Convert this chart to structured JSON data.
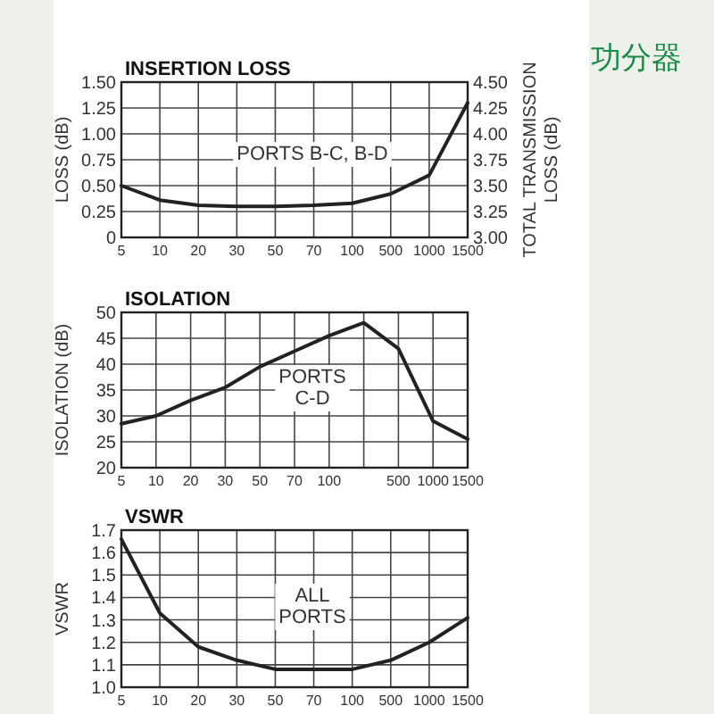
{
  "chart_data": [
    {
      "type": "line",
      "title": "INSERTION LOSS",
      "ylabel": "LOSS (dB)",
      "y2label": "TOTAL TRANSMISSION LOSS (dB)",
      "categories": [
        "5",
        "10",
        "20",
        "30",
        "50",
        "70",
        "100",
        "500",
        "1000",
        "1500"
      ],
      "series": [
        {
          "color": "#222222",
          "values": [
            0.5,
            0.36,
            0.31,
            0.3,
            0.3,
            0.31,
            0.33,
            0.42,
            0.6,
            1.3
          ]
        }
      ],
      "ylim": [
        0,
        1.5
      ],
      "yticks": [
        0,
        {
          "value": 0.25,
          "label": "0.25"
        },
        {
          "value": 0.5,
          "label": "0.50"
        },
        {
          "value": 0.75,
          "label": "0.75"
        },
        {
          "value": 1,
          "label": "1.00"
        },
        {
          "value": 1.25,
          "label": "1.25"
        },
        {
          "value": 1.5,
          "label": "1.50"
        }
      ],
      "y2lim": [
        3,
        4.5
      ],
      "y2ticks": [
        {
          "value": 3,
          "label": "3.00"
        },
        {
          "value": 3.25,
          "label": "3.25"
        },
        {
          "value": 3.5,
          "label": "3.50"
        },
        {
          "value": 3.75,
          "label": "3.75"
        },
        {
          "value": 4,
          "label": "4.00"
        },
        {
          "value": 4.25,
          "label": "4.25"
        },
        {
          "value": 4.5,
          "label": "4.50"
        }
      ],
      "annotations": [
        "PORTS B-C, B-D",
        "功分器"
      ],
      "grid": true
    },
    {
      "type": "line",
      "title": "ISOLATION",
      "ylabel": "ISOLATION (dB)",
      "categories": [
        "5",
        "10",
        "20",
        "30",
        "50",
        "70",
        "100",
        null,
        "500",
        "1000",
        "1500"
      ],
      "series": [
        {
          "color": "#222222",
          "values": [
            28.5,
            30,
            33,
            35.5,
            39.5,
            42.5,
            45.5,
            48,
            43,
            29,
            25.5
          ]
        }
      ],
      "ylim": [
        20,
        50
      ],
      "yticks": [
        20,
        25,
        30,
        35,
        40,
        45,
        50
      ],
      "annotations": [
        "PORTS\nC-D"
      ],
      "grid": true
    },
    {
      "type": "line",
      "title": "VSWR",
      "ylabel": "VSWR",
      "categories": [
        "5",
        "10",
        "20",
        "30",
        "50",
        "70",
        "100",
        "500",
        "1000",
        "1500"
      ],
      "series": [
        {
          "color": "#222222",
          "values": [
            1.66,
            1.33,
            1.18,
            1.12,
            1.08,
            1.08,
            1.08,
            1.12,
            1.2,
            1.31
          ]
        }
      ],
      "ylim": [
        1.0,
        1.7
      ],
      "yticks": [
        {
          "value": 1.0,
          "label": "1.0"
        },
        1.1,
        1.2,
        1.3,
        1.4,
        1.5,
        1.6,
        1.7
      ],
      "annotations": [
        "ALL\nPORTS"
      ],
      "grid": true
    }
  ]
}
